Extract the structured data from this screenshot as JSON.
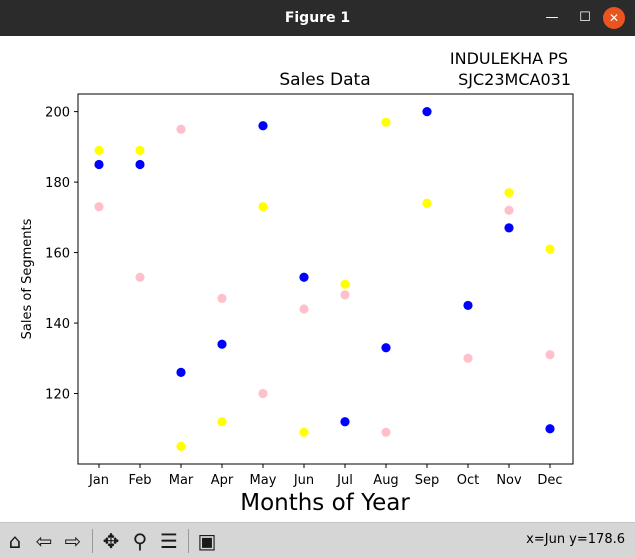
{
  "window": {
    "title": "Figure 1",
    "minimize_glyph": "—",
    "maximize_glyph": "☐",
    "close_glyph": "✕"
  },
  "annotation": [
    "INDULEKHA PS",
    "SJC23MCA031"
  ],
  "chart_data": {
    "type": "scatter",
    "title": "Sales Data",
    "xlabel": "Months of Year",
    "ylabel": "Sales of Segments",
    "categories": [
      "Jan",
      "Feb",
      "Mar",
      "Apr",
      "May",
      "Jun",
      "Jul",
      "Aug",
      "Sep",
      "Oct",
      "Nov",
      "Dec"
    ],
    "ylim": [
      100,
      205
    ],
    "yticks": [
      120,
      140,
      160,
      180,
      200
    ],
    "grid": false,
    "series": [
      {
        "color": "#ffff00",
        "values": [
          189,
          189,
          105,
          112,
          173,
          109,
          151,
          197,
          174,
          null,
          177,
          161
        ]
      },
      {
        "color": "#ffc0cb",
        "values": [
          173,
          153,
          195,
          147,
          120,
          144,
          148,
          109,
          null,
          130,
          172,
          131
        ]
      },
      {
        "color": "#0000ff",
        "values": [
          185,
          185,
          126,
          134,
          196,
          153,
          112,
          133,
          200,
          145,
          167,
          110
        ]
      }
    ]
  },
  "toolbar": {
    "tools": [
      {
        "name": "home-icon",
        "glyph": "⌂"
      },
      {
        "name": "back-arrow-icon",
        "glyph": "⇦"
      },
      {
        "name": "forward-arrow-icon",
        "glyph": "⇨"
      },
      {
        "name": "pan-move-icon",
        "glyph": "✥"
      },
      {
        "name": "zoom-magnifier-icon",
        "glyph": "⚲"
      },
      {
        "name": "configure-subplots-icon",
        "glyph": "☰"
      },
      {
        "name": "save-figure-icon",
        "glyph": "▣"
      }
    ],
    "coordinates": "x=Jun y=178.6"
  }
}
